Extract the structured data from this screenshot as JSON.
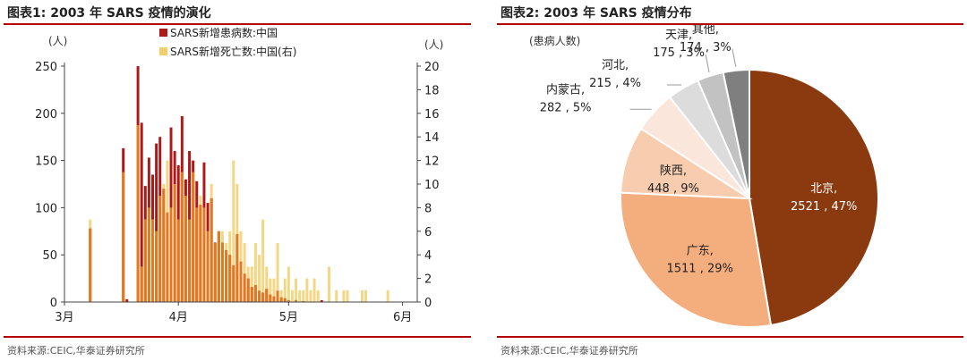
{
  "left": {
    "title": "图表1:  2003 年 SARS 疫情的演化",
    "source": "资料来源:CEIC,华泰证券研究所"
  },
  "right": {
    "title": "图表2:  2003 年 SARS 疫情分布",
    "source": "资料来源:CEIC,华泰证券研究所"
  },
  "chart_data": [
    {
      "type": "bar",
      "title": "图表1:  2003 年 SARS 疫情的演化",
      "y_unit_left": "(人)",
      "y_unit_right": "(人)",
      "ylim_left": [
        0,
        250
      ],
      "ylim_right": [
        0,
        20
      ],
      "yticks_left": [
        "0",
        "50",
        "100",
        "150",
        "200",
        "250"
      ],
      "yticks_right": [
        "0",
        "2",
        "4",
        "6",
        "8",
        "10",
        "12",
        "14",
        "16",
        "18",
        "20"
      ],
      "xticks": [
        {
          "day": 0,
          "label": "3月"
        },
        {
          "day": 31,
          "label": "4月"
        },
        {
          "day": 61,
          "label": "5月"
        },
        {
          "day": 92,
          "label": "6月"
        }
      ],
      "x_range_days": [
        0,
        96
      ],
      "series": [
        {
          "name": "SARS新增患病数:中国",
          "axis": "left",
          "color": "#b01818",
          "data": [
            [
              7,
              78
            ],
            [
              16,
              163
            ],
            [
              17,
              3
            ],
            [
              20,
              250
            ],
            [
              21,
              190
            ],
            [
              22,
              123
            ],
            [
              23,
              153
            ],
            [
              24,
              135
            ],
            [
              25,
              168
            ],
            [
              26,
              175
            ],
            [
              27,
              120
            ],
            [
              28,
              95
            ],
            [
              29,
              185
            ],
            [
              30,
              160
            ],
            [
              31,
              145
            ],
            [
              32,
              197
            ],
            [
              33,
              130
            ],
            [
              34,
              160
            ],
            [
              35,
              150
            ],
            [
              36,
              128
            ],
            [
              37,
              103
            ],
            [
              38,
              148
            ],
            [
              39,
              105
            ],
            [
              40,
              110
            ],
            [
              41,
              63
            ],
            [
              42,
              75
            ],
            [
              43,
              63
            ],
            [
              44,
              55
            ],
            [
              45,
              50
            ],
            [
              46,
              39
            ],
            [
              47,
              72
            ],
            [
              48,
              43
            ],
            [
              49,
              30
            ],
            [
              50,
              25
            ],
            [
              51,
              16
            ],
            [
              52,
              18
            ],
            [
              53,
              12
            ],
            [
              54,
              10
            ],
            [
              55,
              14
            ],
            [
              56,
              8
            ],
            [
              57,
              6
            ],
            [
              58,
              12
            ],
            [
              59,
              5
            ],
            [
              60,
              4
            ],
            [
              61,
              2
            ],
            [
              63,
              2
            ],
            [
              65,
              1
            ],
            [
              70,
              2
            ]
          ]
        },
        {
          "name": "SARS新增死亡数:中国(右)",
          "axis": "right",
          "color": "#f2cf6d",
          "data": [
            [
              7,
              7
            ],
            [
              16,
              11
            ],
            [
              20,
              15
            ],
            [
              21,
              3
            ],
            [
              22,
              7
            ],
            [
              23,
              8
            ],
            [
              24,
              7
            ],
            [
              25,
              6
            ],
            [
              26,
              9
            ],
            [
              27,
              10
            ],
            [
              28,
              12
            ],
            [
              29,
              8
            ],
            [
              30,
              10
            ],
            [
              31,
              7
            ],
            [
              32,
              11
            ],
            [
              33,
              9
            ],
            [
              34,
              7
            ],
            [
              35,
              11
            ],
            [
              36,
              8
            ],
            [
              37,
              9
            ],
            [
              38,
              8
            ],
            [
              39,
              6
            ],
            [
              40,
              10
            ],
            [
              41,
              5
            ],
            [
              42,
              6
            ],
            [
              43,
              6
            ],
            [
              44,
              5
            ],
            [
              45,
              6
            ],
            [
              46,
              12
            ],
            [
              47,
              10
            ],
            [
              48,
              6
            ],
            [
              49,
              5
            ],
            [
              50,
              3
            ],
            [
              51,
              3
            ],
            [
              52,
              5
            ],
            [
              53,
              4
            ],
            [
              54,
              7
            ],
            [
              55,
              3
            ],
            [
              56,
              2
            ],
            [
              57,
              2
            ],
            [
              58,
              5
            ],
            [
              59,
              1
            ],
            [
              60,
              2
            ],
            [
              61,
              3
            ],
            [
              62,
              1
            ],
            [
              63,
              2
            ],
            [
              64,
              1
            ],
            [
              65,
              1
            ],
            [
              66,
              2
            ],
            [
              67,
              1
            ],
            [
              68,
              2
            ],
            [
              69,
              1
            ],
            [
              72,
              3
            ],
            [
              74,
              1
            ],
            [
              76,
              1
            ],
            [
              77,
              1
            ],
            [
              81,
              1
            ],
            [
              82,
              1
            ],
            [
              88,
              1
            ]
          ]
        }
      ]
    },
    {
      "type": "pie",
      "title": "图表2:  2003 年 SARS 疫情分布",
      "unit_label": "(患病人数)",
      "slices": [
        {
          "name": "北京",
          "value": 2521,
          "pct": "47%",
          "color": "#8a3a0e",
          "label": [
            "北京,",
            "2521 , 47%"
          ],
          "text_color": "#ffffff"
        },
        {
          "name": "广东",
          "value": 1511,
          "pct": "29%",
          "color": "#f4ad7d",
          "label": [
            "广东,",
            "1511 , 29%"
          ],
          "text_color": "#222222"
        },
        {
          "name": "陕西",
          "value": 448,
          "pct": "9%",
          "color": "#f8ccae",
          "label": [
            "陕西,",
            "448 , 9%"
          ],
          "text_color": "#222222"
        },
        {
          "name": "内蒙古",
          "value": 282,
          "pct": "5%",
          "color": "#fae6da",
          "label": [
            "内蒙古,",
            "282 , 5%"
          ],
          "text_color": "#222222"
        },
        {
          "name": "河北",
          "value": 215,
          "pct": "4%",
          "color": "#dcdcdc",
          "label": [
            "河北,",
            "215 , 4%"
          ],
          "text_color": "#222222"
        },
        {
          "name": "天津",
          "value": 175,
          "pct": "3%",
          "color": "#c2c2c2",
          "label": [
            "天津,",
            "175 , 3%"
          ],
          "text_color": "#222222"
        },
        {
          "name": "其他",
          "value": 174,
          "pct": "3%",
          "color": "#7f7f7f",
          "label": [
            "其他,",
            "174 , 3%"
          ],
          "text_color": "#222222"
        }
      ]
    }
  ]
}
